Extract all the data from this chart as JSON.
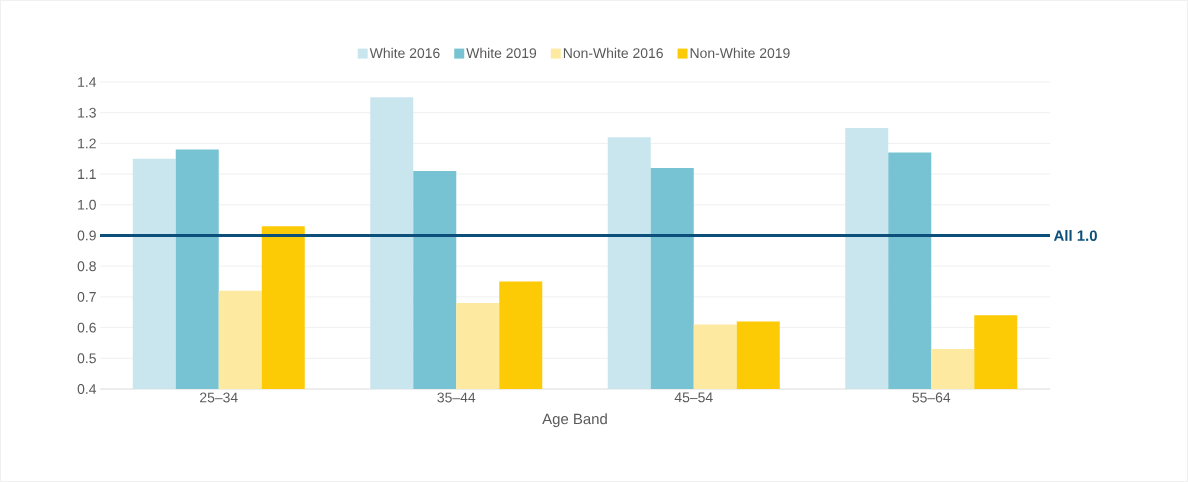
{
  "chart_data": {
    "type": "bar",
    "xlabel": "Age Band",
    "categories": [
      "25–34",
      "35–44",
      "45–54",
      "55–64"
    ],
    "series": [
      {
        "name": "White 2016",
        "color": "#c9e6ee",
        "values": [
          1.15,
          1.35,
          1.22,
          1.25
        ]
      },
      {
        "name": "White 2019",
        "color": "#78c3d3",
        "values": [
          1.18,
          1.11,
          1.12,
          1.17
        ]
      },
      {
        "name": "Non-White 2016",
        "color": "#fde9a0",
        "values": [
          0.72,
          0.68,
          0.61,
          0.53
        ]
      },
      {
        "name": "Non-White 2019",
        "color": "#fdcb05",
        "values": [
          0.93,
          0.75,
          0.62,
          0.64
        ]
      }
    ],
    "ylim": [
      0.4,
      1.4
    ],
    "yticks": [
      0.4,
      0.5,
      0.6,
      0.7,
      0.8,
      0.9,
      {
        "value": 1.0,
        "label": "1.0"
      },
      1.1,
      1.2,
      1.3,
      1.4
    ],
    "ref_lines": [
      {
        "axis": "y",
        "value": 0.9,
        "label": "All 1.0",
        "color": "#0b4f7a"
      }
    ],
    "grid": "y",
    "legend": "top"
  }
}
